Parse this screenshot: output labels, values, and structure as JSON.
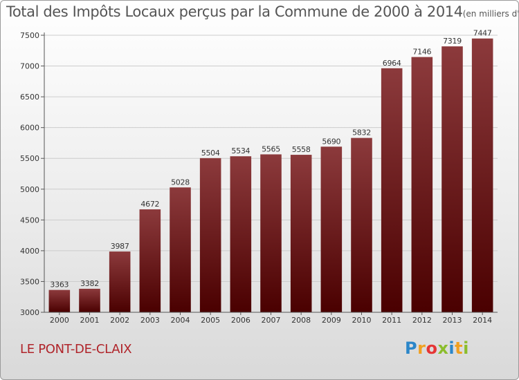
{
  "title": "Total des Impôts Locaux perçus par la Commune de 2000 à 2014",
  "unit": "(en milliers d'€)",
  "commune": "LE PONT-DE-CLAIX",
  "logo": {
    "text": "Proxiti",
    "colors": [
      "#2b86c9",
      "#f0a020",
      "#e63535",
      "#8bbd2c",
      "#2b86c9",
      "#f0a020",
      "#8bbd2c"
    ]
  },
  "colors": {
    "bar_top": "#8c3a3c",
    "bar_bottom": "#4a0000",
    "grid": "#cccccc",
    "axis_text": "#333333"
  },
  "chart_data": {
    "type": "bar",
    "title": "Total des Impôts Locaux perçus par la Commune de 2000 à 2014",
    "xlabel": "",
    "ylabel": "(en milliers d'€)",
    "ylim": [
      3000,
      7500
    ],
    "yticks": [
      3000,
      3500,
      4000,
      4500,
      5000,
      5500,
      6000,
      6500,
      7000,
      7500
    ],
    "grid": true,
    "categories": [
      "2000",
      "2001",
      "2002",
      "2003",
      "2004",
      "2005",
      "2006",
      "2007",
      "2008",
      "2009",
      "2010",
      "2011",
      "2012",
      "2013",
      "2014"
    ],
    "values": [
      3363,
      3382,
      3987,
      4672,
      5028,
      5504,
      5534,
      5565,
      5558,
      5690,
      5832,
      6964,
      7146,
      7319,
      7447
    ]
  }
}
